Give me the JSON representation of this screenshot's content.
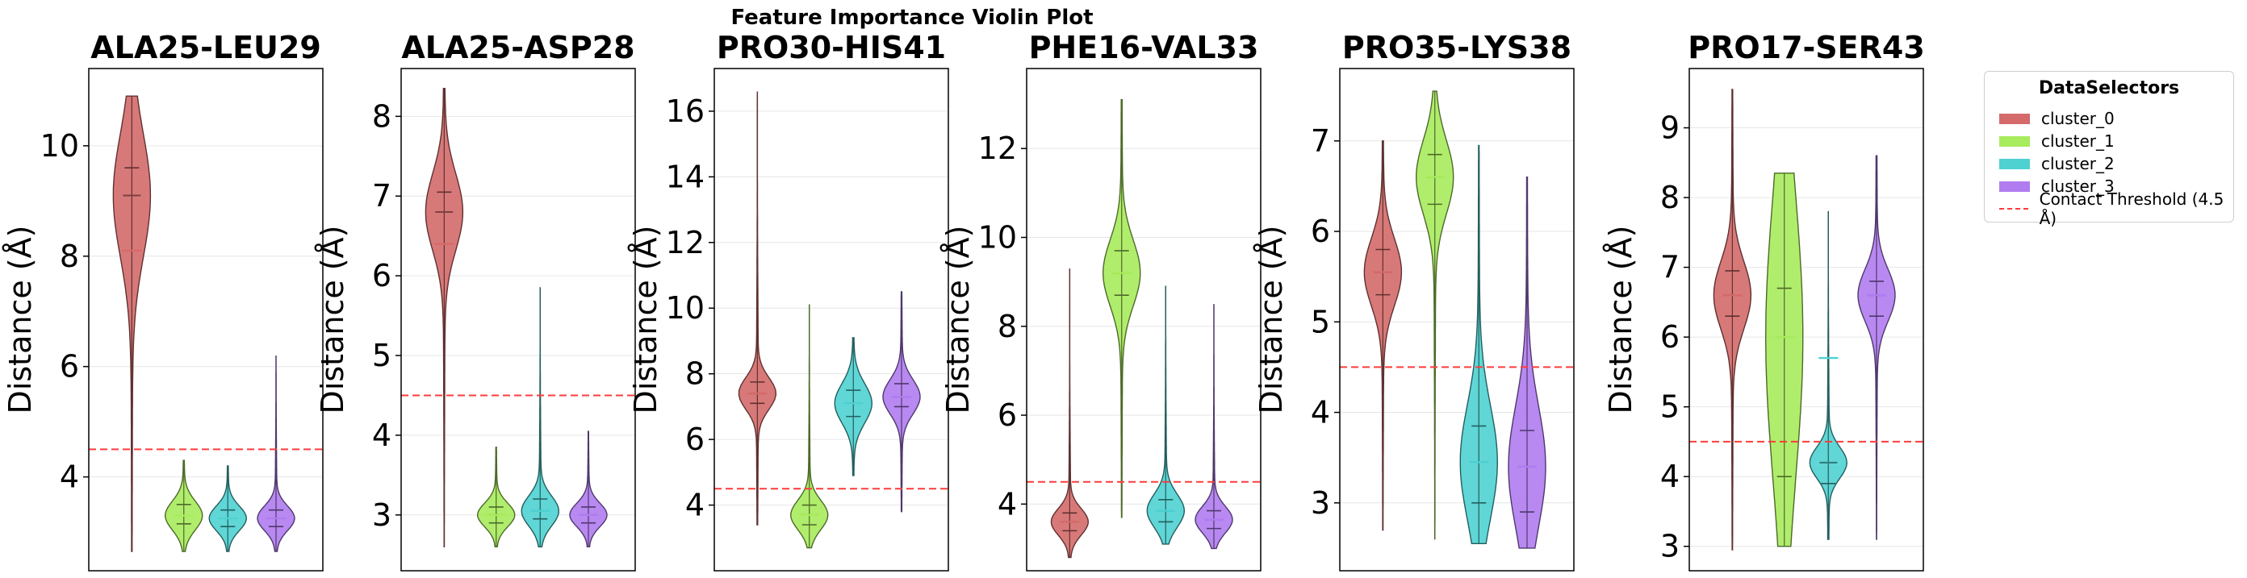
{
  "figure_title": "Feature Importance Violin Plot",
  "colors": {
    "cluster_0": "#d46a6a",
    "cluster_1": "#a8eb5c",
    "cluster_2": "#4fd1d1",
    "cluster_3": "#b07cf0",
    "threshold": "#ff3b3b"
  },
  "legend": {
    "title": "DataSelectors",
    "items": [
      "cluster_0",
      "cluster_1",
      "cluster_2",
      "cluster_3"
    ],
    "threshold_label": "Contact Threshold (4.5 Å)"
  },
  "chart_data": [
    {
      "type": "violin",
      "title": "ALA25-LEU29",
      "ylabel": "Distance (Å)",
      "ylim": [
        2.3,
        11.4
      ],
      "yticks": [
        4,
        6,
        8,
        10
      ],
      "threshold": 4.5,
      "series": [
        {
          "name": "cluster_0",
          "min": 2.65,
          "max": 10.9,
          "mean": 8.1,
          "median": 9.1,
          "q1": 8.1,
          "q3": 9.6
        },
        {
          "name": "cluster_1",
          "min": 2.65,
          "max": 4.3,
          "mean": 3.3,
          "median": 3.3,
          "q1": 3.15,
          "q3": 3.5
        },
        {
          "name": "cluster_2",
          "min": 2.65,
          "max": 4.2,
          "mean": 3.25,
          "median": 3.25,
          "q1": 3.1,
          "q3": 3.4
        },
        {
          "name": "cluster_3",
          "min": 2.65,
          "max": 6.2,
          "mean": 3.25,
          "median": 3.25,
          "q1": 3.1,
          "q3": 3.4
        }
      ]
    },
    {
      "type": "violin",
      "title": "ALA25-ASP28",
      "ylabel": "Distance (Å)",
      "ylim": [
        2.3,
        8.6
      ],
      "yticks": [
        3,
        4,
        5,
        6,
        7,
        8
      ],
      "threshold": 4.5,
      "series": [
        {
          "name": "cluster_0",
          "min": 2.6,
          "max": 8.35,
          "mean": 6.4,
          "median": 6.8,
          "q1": 6.4,
          "q3": 7.05
        },
        {
          "name": "cluster_1",
          "min": 2.6,
          "max": 3.85,
          "mean": 3.0,
          "median": 3.0,
          "q1": 2.9,
          "q3": 3.1
        },
        {
          "name": "cluster_2",
          "min": 2.6,
          "max": 5.85,
          "mean": 3.05,
          "median": 3.05,
          "q1": 2.95,
          "q3": 3.2
        },
        {
          "name": "cluster_3",
          "min": 2.6,
          "max": 4.05,
          "mean": 3.0,
          "median": 3.0,
          "q1": 2.9,
          "q3": 3.1
        }
      ]
    },
    {
      "type": "violin",
      "title": "PRO30-HIS41",
      "ylabel": "Distance (Å)",
      "ylim": [
        2.0,
        17.3
      ],
      "yticks": [
        4,
        6,
        8,
        10,
        12,
        14,
        16
      ],
      "threshold": 4.5,
      "series": [
        {
          "name": "cluster_0",
          "min": 3.4,
          "max": 16.6,
          "mean": 7.4,
          "median": 7.4,
          "q1": 7.1,
          "q3": 7.75
        },
        {
          "name": "cluster_1",
          "min": 2.7,
          "max": 10.1,
          "mean": 3.7,
          "median": 3.7,
          "q1": 3.4,
          "q3": 4.0
        },
        {
          "name": "cluster_2",
          "min": 4.9,
          "max": 9.1,
          "mean": 7.1,
          "median": 7.1,
          "q1": 6.7,
          "q3": 7.5
        },
        {
          "name": "cluster_3",
          "min": 3.8,
          "max": 10.5,
          "mean": 7.3,
          "median": 7.3,
          "q1": 7.0,
          "q3": 7.7
        }
      ]
    },
    {
      "type": "violin",
      "title": "PHE16-VAL33",
      "ylabel": "Distance (Å)",
      "ylim": [
        2.5,
        13.8
      ],
      "yticks": [
        4,
        6,
        8,
        10,
        12
      ],
      "threshold": 4.5,
      "series": [
        {
          "name": "cluster_0",
          "min": 2.8,
          "max": 9.3,
          "mean": 3.6,
          "median": 3.6,
          "q1": 3.4,
          "q3": 3.8
        },
        {
          "name": "cluster_1",
          "min": 3.7,
          "max": 13.1,
          "mean": 9.2,
          "median": 9.2,
          "q1": 8.7,
          "q3": 9.7
        },
        {
          "name": "cluster_2",
          "min": 3.1,
          "max": 8.9,
          "mean": 3.85,
          "median": 3.85,
          "q1": 3.6,
          "q3": 4.1
        },
        {
          "name": "cluster_3",
          "min": 3.0,
          "max": 8.5,
          "mean": 3.65,
          "median": 3.65,
          "q1": 3.45,
          "q3": 3.85
        }
      ]
    },
    {
      "type": "violin",
      "title": "PRO35-LYS38",
      "ylabel": "Distance (Å)",
      "ylim": [
        2.25,
        7.8
      ],
      "yticks": [
        3,
        4,
        5,
        6,
        7
      ],
      "threshold": 4.5,
      "series": [
        {
          "name": "cluster_0",
          "min": 2.7,
          "max": 7.0,
          "mean": 5.55,
          "median": 5.55,
          "q1": 5.3,
          "q3": 5.8
        },
        {
          "name": "cluster_1",
          "min": 2.6,
          "max": 7.55,
          "mean": 6.6,
          "median": 6.6,
          "q1": 6.3,
          "q3": 6.85
        },
        {
          "name": "cluster_2",
          "min": 2.55,
          "max": 6.95,
          "mean": 3.45,
          "median": 3.45,
          "q1": 3.0,
          "q3": 3.85
        },
        {
          "name": "cluster_3",
          "min": 2.5,
          "max": 6.6,
          "mean": 3.4,
          "median": 3.4,
          "q1": 2.9,
          "q3": 3.8
        }
      ]
    },
    {
      "type": "violin",
      "title": "PRO17-SER43",
      "ylabel": "Distance (Å)",
      "ylim": [
        2.65,
        9.85
      ],
      "yticks": [
        3,
        4,
        5,
        6,
        7,
        8,
        9
      ],
      "threshold": 4.5,
      "series": [
        {
          "name": "cluster_0",
          "min": 2.95,
          "max": 9.55,
          "mean": 6.6,
          "median": 6.6,
          "q1": 6.3,
          "q3": 6.95
        },
        {
          "name": "cluster_1",
          "min": 3.0,
          "max": 8.35,
          "mean": 6.0,
          "median": 6.0,
          "q1": 4.0,
          "q3": 6.7
        },
        {
          "name": "cluster_2",
          "min": 3.1,
          "max": 7.8,
          "mean": 5.7,
          "median": 4.2,
          "q1": 3.9,
          "q3": 4.2
        },
        {
          "name": "cluster_3",
          "min": 3.1,
          "max": 8.6,
          "mean": 6.6,
          "median": 6.6,
          "q1": 6.3,
          "q3": 6.8
        }
      ]
    }
  ]
}
